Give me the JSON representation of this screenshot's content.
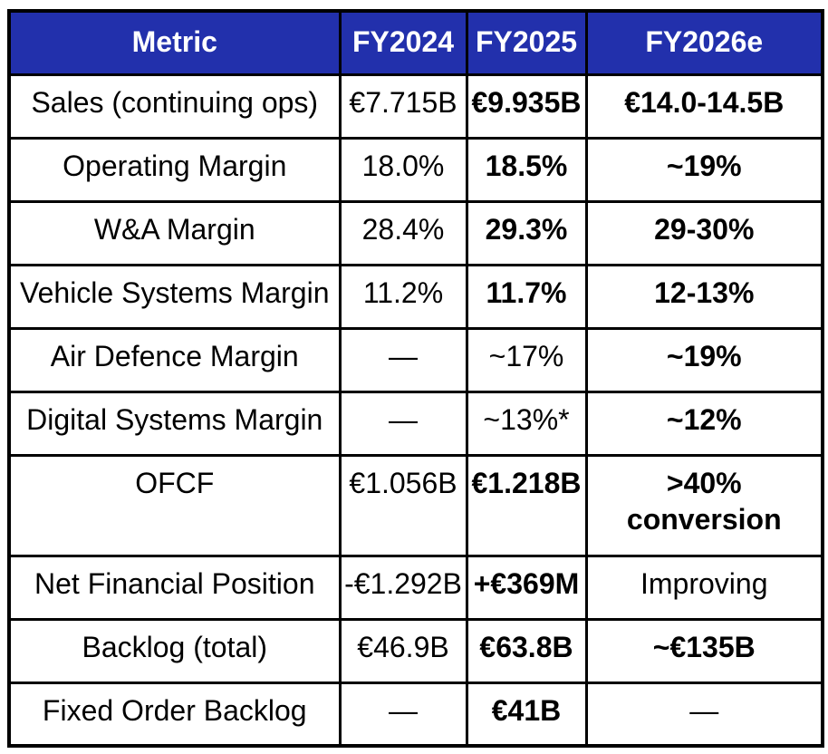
{
  "colors": {
    "header_bg": "#2230ac",
    "header_text": "#ffffff",
    "border": "#000000",
    "cell_bg": "#ffffff",
    "text": "#000000"
  },
  "chart_data": {
    "type": "table",
    "columns": [
      "Metric",
      "FY2024",
      "FY2025",
      "FY2026e"
    ],
    "rows": [
      {
        "cells": [
          {
            "text": "Sales (continuing ops)",
            "bold": false
          },
          {
            "text": "€7.715B",
            "bold": false
          },
          {
            "text": "€9.935B",
            "bold": true
          },
          {
            "text": "€14.0-14.5B",
            "bold": true
          }
        ]
      },
      {
        "cells": [
          {
            "text": "Operating Margin",
            "bold": false
          },
          {
            "text": "18.0%",
            "bold": false
          },
          {
            "text": "18.5%",
            "bold": true
          },
          {
            "text": "~19%",
            "bold": true
          }
        ]
      },
      {
        "cells": [
          {
            "text": "W&A Margin",
            "bold": false
          },
          {
            "text": "28.4%",
            "bold": false
          },
          {
            "text": "29.3%",
            "bold": true
          },
          {
            "text": "29-30%",
            "bold": true
          }
        ]
      },
      {
        "cells": [
          {
            "text": "Vehicle Systems Margin",
            "bold": false
          },
          {
            "text": "11.2%",
            "bold": false
          },
          {
            "text": "11.7%",
            "bold": true
          },
          {
            "text": "12-13%",
            "bold": true
          }
        ]
      },
      {
        "cells": [
          {
            "text": "Air Defence Margin",
            "bold": false
          },
          {
            "text": "—",
            "bold": false
          },
          {
            "text": "~17%",
            "bold": false
          },
          {
            "text": "~19%",
            "bold": true
          }
        ]
      },
      {
        "cells": [
          {
            "text": "Digital Systems Margin",
            "bold": false
          },
          {
            "text": "—",
            "bold": false
          },
          {
            "text": "~13%*",
            "bold": false
          },
          {
            "text": "~12%",
            "bold": true
          }
        ]
      },
      {
        "cells": [
          {
            "text": "OFCF",
            "bold": false
          },
          {
            "text": "€1.056B",
            "bold": false
          },
          {
            "text": "€1.218B",
            "bold": true
          },
          {
            "text": ">40%\nconversion",
            "bold": true
          }
        ]
      },
      {
        "cells": [
          {
            "text": "Net Financial Position",
            "bold": false
          },
          {
            "text": "-€1.292B",
            "bold": false
          },
          {
            "text": "+€369M",
            "bold": true
          },
          {
            "text": "Improving",
            "bold": false
          }
        ]
      },
      {
        "cells": [
          {
            "text": "Backlog (total)",
            "bold": false
          },
          {
            "text": "€46.9B",
            "bold": false
          },
          {
            "text": "€63.8B",
            "bold": true
          },
          {
            "text": "~€135B",
            "bold": true
          }
        ]
      },
      {
        "cells": [
          {
            "text": "Fixed Order Backlog",
            "bold": false
          },
          {
            "text": "—",
            "bold": false
          },
          {
            "text": "€41B",
            "bold": true
          },
          {
            "text": "—",
            "bold": false
          }
        ]
      }
    ]
  }
}
